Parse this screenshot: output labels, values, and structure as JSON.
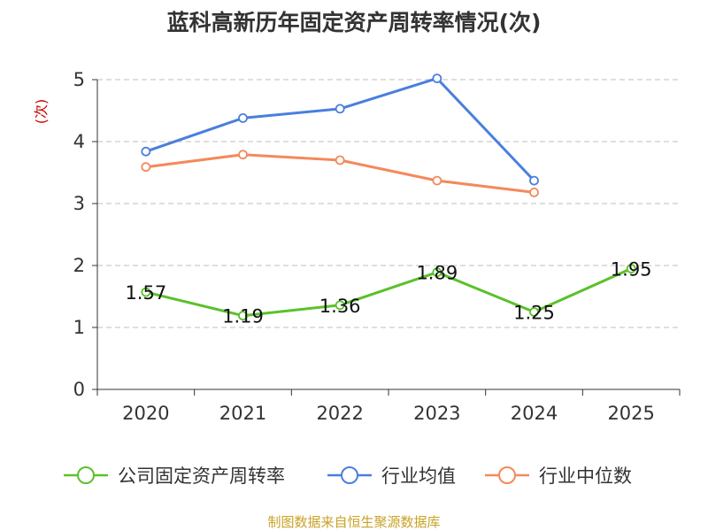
{
  "title": "蓝科高新历年固定资产周转率情况(次)",
  "source": "制图数据来自恒生聚源数据库",
  "colors": {
    "company": "#5bc12b",
    "industry_avg": "#4a7fdc",
    "industry_median": "#f4895b",
    "unit_label": "#cc0000",
    "grid": "#cccccc",
    "axis": "#333333",
    "source": "#c9a227"
  },
  "chart_data": {
    "type": "line",
    "title": "蓝科高新历年固定资产周转率情况(次)",
    "ylabel": "(次)",
    "xlabel": "",
    "categories": [
      "2020",
      "2021",
      "2022",
      "2023",
      "2024",
      "2025"
    ],
    "ylim": [
      0,
      5
    ],
    "yticks": [
      0,
      1,
      2,
      3,
      4,
      5
    ],
    "grid": true,
    "legend_position": "bottom",
    "series": [
      {
        "key": "company",
        "name": "公司固定资产周转率",
        "values": [
          1.57,
          1.19,
          1.36,
          1.89,
          1.25,
          1.95
        ],
        "labels": [
          "1.57",
          "1.19",
          "1.36",
          "1.89",
          "1.25",
          "1.95"
        ],
        "show_labels": true
      },
      {
        "key": "industry_avg",
        "name": "行业均值",
        "values": [
          3.84,
          4.38,
          4.53,
          5.02,
          3.37,
          null
        ],
        "show_labels": false
      },
      {
        "key": "industry_median",
        "name": "行业中位数",
        "values": [
          3.59,
          3.79,
          3.7,
          3.37,
          3.18,
          null
        ],
        "show_labels": false
      }
    ]
  }
}
